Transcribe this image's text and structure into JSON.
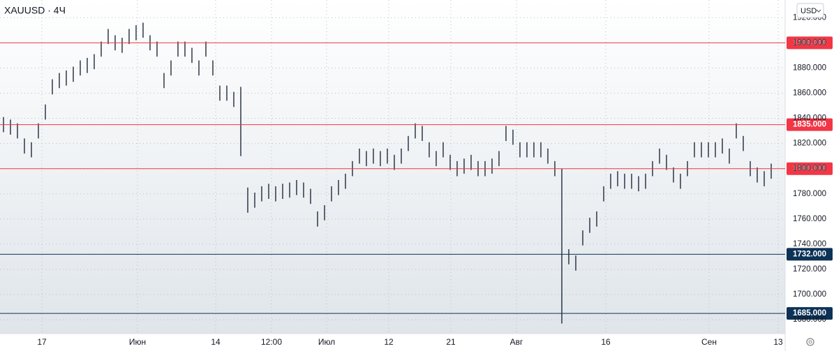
{
  "chart_data": {
    "type": "range-bar",
    "title": "XAUUSD · 4Ч",
    "currency": "USD",
    "color": "#1e2a3a",
    "grid": true,
    "xlim": [
      0,
      112
    ],
    "xticks": [
      {
        "value": 6,
        "label": "17"
      },
      {
        "value": 19.7,
        "label": "Июн"
      },
      {
        "value": 30.9,
        "label": "14"
      },
      {
        "value": 38.9,
        "label": "12:00"
      },
      {
        "value": 46.8,
        "label": "Июл"
      },
      {
        "value": 55.7,
        "label": "12"
      },
      {
        "value": 64.6,
        "label": "21"
      },
      {
        "value": 74,
        "label": "Авг"
      },
      {
        "value": 86.8,
        "label": "16"
      },
      {
        "value": 101.6,
        "label": "Сен"
      },
      {
        "value": 111.5,
        "label": "13"
      }
    ],
    "ylim": [
      1669,
      1934
    ],
    "yticks": [
      {
        "value": 1680,
        "label": "1680.000"
      },
      {
        "value": 1700,
        "label": "1700.000"
      },
      {
        "value": 1720,
        "label": "1720.000"
      },
      {
        "value": 1740,
        "label": "1740.000"
      },
      {
        "value": 1760,
        "label": "1760.000"
      },
      {
        "value": 1780,
        "label": "1780.000"
      },
      {
        "value": 1800,
        "label": "1800.000"
      },
      {
        "value": 1820,
        "label": "1820.000"
      },
      {
        "value": 1840,
        "label": "1840.000"
      },
      {
        "value": 1860,
        "label": "1860.000"
      },
      {
        "value": 1880,
        "label": "1880.000"
      },
      {
        "value": 1900,
        "label": "1900.000"
      },
      {
        "value": 1920,
        "label": "1920.000"
      }
    ],
    "levels": [
      {
        "value": 1900,
        "label": "1900.000",
        "color": "#f23645"
      },
      {
        "value": 1835,
        "label": "1835.000",
        "color": "#f23645"
      },
      {
        "value": 1800,
        "label": "1800.000",
        "color": "#f23645"
      },
      {
        "value": 1732,
        "label": "1732.000",
        "color": "#0c3256"
      },
      {
        "value": 1685,
        "label": "1685.000",
        "color": "#0c3256"
      }
    ],
    "high": [
      1841,
      1839,
      1836,
      1824,
      1821,
      1836,
      1851,
      1871,
      1876,
      1878,
      1881,
      1886,
      1888,
      1891,
      1901,
      1911,
      1906,
      1904,
      1911,
      1914,
      1916,
      1906,
      1901,
      1876,
      1886,
      1901,
      1901,
      1896,
      1886,
      1901,
      1886,
      1866,
      1866,
      1861,
      1865,
      1785,
      1781,
      1786,
      1788,
      1786,
      1788,
      1789,
      1791,
      1789,
      1784,
      1766,
      1771,
      1786,
      1791,
      1796,
      1806,
      1816,
      1814,
      1816,
      1814,
      1816,
      1811,
      1816,
      1826,
      1836,
      1834,
      1821,
      1814,
      1821,
      1811,
      1806,
      1808,
      1811,
      1806,
      1806,
      1808,
      1814,
      1834,
      1831,
      1821,
      1821,
      1821,
      1821,
      1816,
      1806,
      1800,
      1736,
      1731,
      1751,
      1761,
      1766,
      1786,
      1796,
      1798,
      1796,
      1796,
      1794,
      1796,
      1806,
      1816,
      1811,
      1801,
      1796,
      1806,
      1821,
      1821,
      1821,
      1821,
      1824,
      1816,
      1836,
      1826,
      1806,
      1801,
      1798,
      1804
    ],
    "low": [
      1829,
      1827,
      1824,
      1812,
      1809,
      1824,
      1839,
      1859,
      1864,
      1866,
      1869,
      1874,
      1876,
      1879,
      1889,
      1899,
      1894,
      1892,
      1899,
      1902,
      1904,
      1894,
      1889,
      1864,
      1874,
      1889,
      1889,
      1884,
      1874,
      1889,
      1874,
      1854,
      1854,
      1849,
      1810,
      1765,
      1769,
      1774,
      1776,
      1774,
      1776,
      1777,
      1779,
      1777,
      1772,
      1754,
      1759,
      1774,
      1779,
      1784,
      1794,
      1804,
      1802,
      1804,
      1802,
      1804,
      1799,
      1804,
      1814,
      1824,
      1822,
      1809,
      1802,
      1809,
      1799,
      1794,
      1796,
      1799,
      1794,
      1794,
      1796,
      1802,
      1822,
      1819,
      1809,
      1809,
      1809,
      1809,
      1804,
      1794,
      1677,
      1724,
      1719,
      1739,
      1749,
      1754,
      1774,
      1784,
      1786,
      1784,
      1784,
      1782,
      1784,
      1794,
      1804,
      1799,
      1789,
      1784,
      1794,
      1809,
      1809,
      1809,
      1809,
      1812,
      1804,
      1824,
      1814,
      1794,
      1789,
      1786,
      1792
    ]
  }
}
